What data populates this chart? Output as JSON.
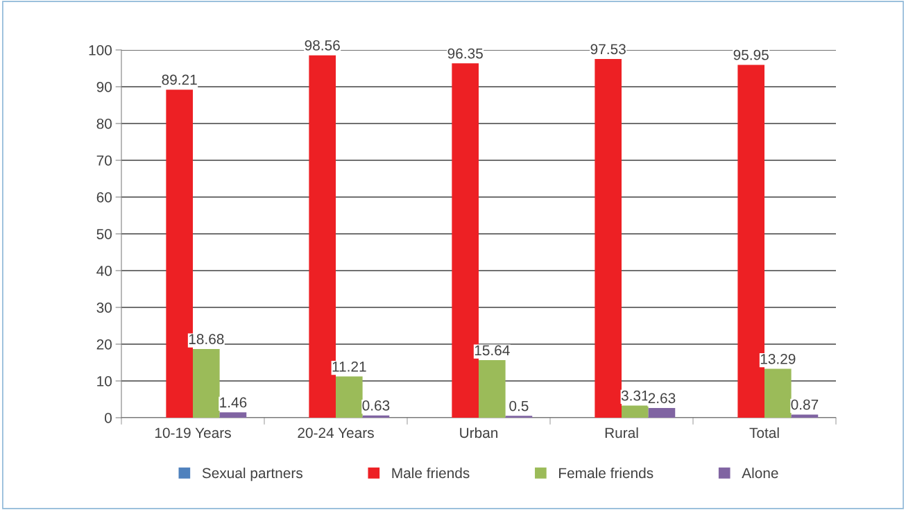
{
  "chart_data": {
    "type": "bar",
    "categories": [
      "10-19 Years",
      "20-24 Years",
      "Urban",
      "Rural",
      "Total"
    ],
    "series": [
      {
        "name": "Sexual partners",
        "color": "#4f81bd",
        "values": [
          0,
          0,
          0,
          0,
          0
        ],
        "value_labels": [
          null,
          null,
          null,
          null,
          null
        ]
      },
      {
        "name": "Male friends",
        "color": "#ed2024",
        "values": [
          89.21,
          98.56,
          96.35,
          97.53,
          95.95
        ],
        "value_labels": [
          "89.21",
          "98.56",
          "96.35",
          "97.53",
          "95.95"
        ]
      },
      {
        "name": "Female friends",
        "color": "#9bbb59",
        "values": [
          18.68,
          11.21,
          15.64,
          3.31,
          13.29
        ],
        "value_labels": [
          "18.68",
          "11.21",
          "15.64",
          "3.31",
          "13.29"
        ]
      },
      {
        "name": "Alone",
        "color": "#8064a2",
        "values": [
          1.46,
          0.63,
          0.5,
          2.63,
          0.87
        ],
        "value_labels": [
          "1.46",
          "0.63",
          "0.5",
          "2.63",
          "0.87"
        ]
      }
    ],
    "ylim": [
      0,
      100
    ],
    "yticks": [
      0,
      10,
      20,
      30,
      40,
      50,
      60,
      70,
      80,
      90,
      100
    ],
    "grid": "y",
    "legend": "bottom"
  }
}
